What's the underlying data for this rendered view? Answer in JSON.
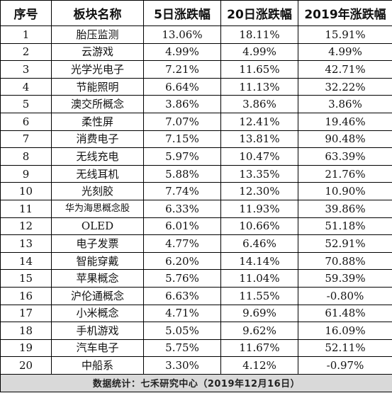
{
  "headers": [
    "序号",
    "板块名称",
    "5日涨跌幅",
    "20日涨跌幅",
    "2019年涨跌幅"
  ],
  "rows": [
    [
      "1",
      "胎压监测",
      "13.06%",
      "18.11%",
      "15.91%"
    ],
    [
      "2",
      "云游戏",
      "4.99%",
      "4.99%",
      "4.99%"
    ],
    [
      "3",
      "光学光电子",
      "7.21%",
      "11.65%",
      "42.71%"
    ],
    [
      "4",
      "节能照明",
      "6.64%",
      "11.13%",
      "32.22%"
    ],
    [
      "5",
      "澳交所概念",
      "3.86%",
      "3.86%",
      "3.86%"
    ],
    [
      "6",
      "柔性屏",
      "7.07%",
      "12.41%",
      "19.46%"
    ],
    [
      "7",
      "消费电子",
      "7.15%",
      "13.81%",
      "90.48%"
    ],
    [
      "8",
      "无线充电",
      "5.97%",
      "10.47%",
      "63.39%"
    ],
    [
      "9",
      "无线耳机",
      "5.88%",
      "13.35%",
      "21.76%"
    ],
    [
      "10",
      "光刻胶",
      "7.74%",
      "12.30%",
      "10.90%"
    ],
    [
      "11",
      "华为海思概念股",
      "6.33%",
      "11.93%",
      "39.86%"
    ],
    [
      "12",
      "OLED",
      "6.01%",
      "10.66%",
      "51.18%"
    ],
    [
      "13",
      "电子发票",
      "4.77%",
      "6.46%",
      "52.91%"
    ],
    [
      "14",
      "智能穿戴",
      "6.20%",
      "14.14%",
      "70.88%"
    ],
    [
      "15",
      "苹果概念",
      "5.76%",
      "11.04%",
      "59.39%"
    ],
    [
      "16",
      "沪伦通概念",
      "6.63%",
      "11.55%",
      "-0.80%"
    ],
    [
      "17",
      "小米概念",
      "4.71%",
      "9.69%",
      "61.48%"
    ],
    [
      "18",
      "手机游戏",
      "5.05%",
      "9.62%",
      "16.09%"
    ],
    [
      "19",
      "汽车电子",
      "5.75%",
      "11.67%",
      "52.11%"
    ],
    [
      "20",
      "中船系",
      "3.30%",
      "4.12%",
      "-0.97%"
    ]
  ],
  "footer": "数据统计：七禾研究中心（2019年12月16日）"
}
